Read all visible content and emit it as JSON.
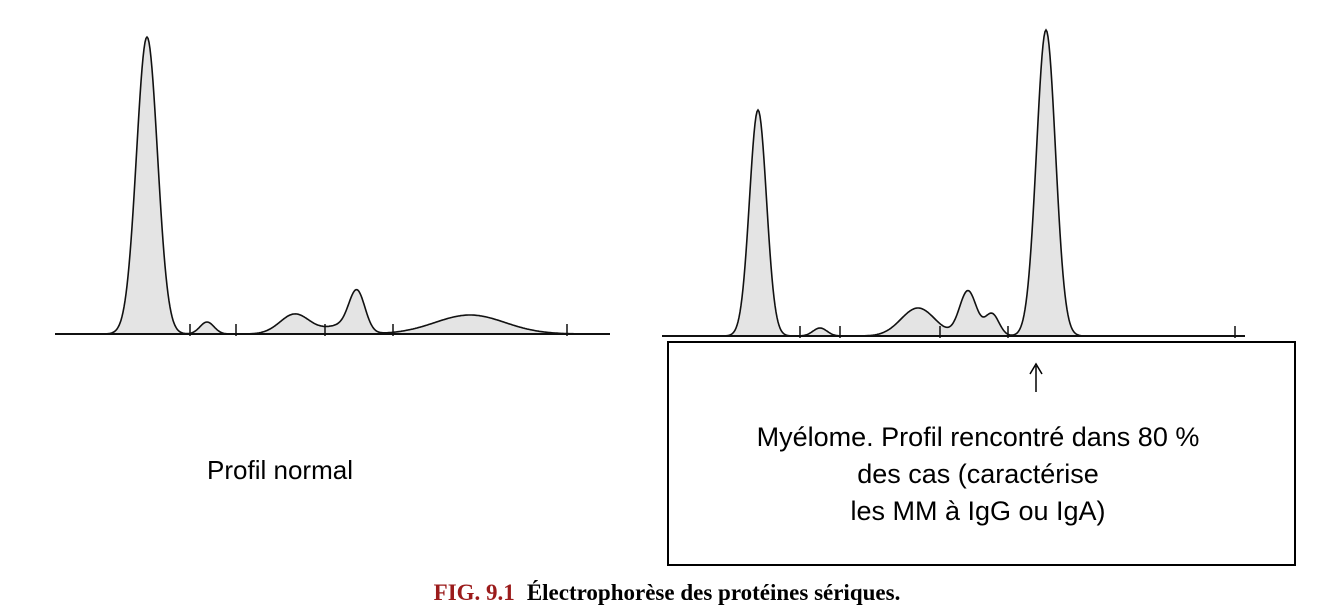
{
  "left_label": "Profil normal",
  "box": {
    "lines": [
      "Myélome. Profil rencontré dans 80 %",
      "des cas (caractérise",
      "les MM à IgG ou IgA)"
    ]
  },
  "caption": {
    "number": "FIG. 9.1",
    "text": "Électrophorèse des protéines sériques."
  }
}
